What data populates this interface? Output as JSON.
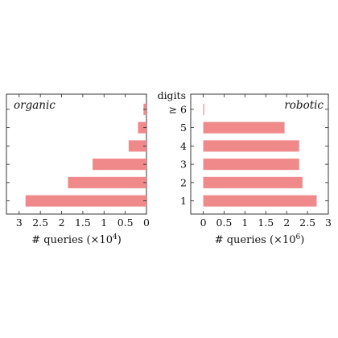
{
  "chart_data": [
    {
      "type": "bar",
      "orientation": "horizontal",
      "panel_label": "organic",
      "categories": [
        "1",
        "2",
        "3",
        "4",
        "5",
        "≥ 6"
      ],
      "values": [
        2.85,
        1.85,
        1.27,
        0.42,
        0.2,
        0.07
      ],
      "x_reversed": true,
      "xlim": [
        0,
        3.3
      ],
      "xticks": [
        "3",
        "2.5",
        "2",
        "1.5",
        "1",
        "0.5",
        "0"
      ],
      "xtick_values": [
        3,
        2.5,
        2,
        1.5,
        1,
        0.5,
        0
      ],
      "xlabel": "# queries (×10",
      "xlabel_exp": "4",
      "xlabel_close": ")",
      "ylabel": "",
      "show_category_labels": false,
      "bar_color": "#f08a8a",
      "grid": false
    },
    {
      "type": "bar",
      "orientation": "horizontal",
      "panel_label": "robotic",
      "categories": [
        "1",
        "2",
        "3",
        "4",
        "5",
        "≥ 6"
      ],
      "values": [
        2.72,
        2.38,
        2.3,
        2.3,
        1.95,
        0.02
      ],
      "x_reversed": false,
      "xlim": [
        -0.3,
        3.0
      ],
      "xticks": [
        "0",
        "0.5",
        "1",
        "1.5",
        "2",
        "2.5",
        "3"
      ],
      "xtick_values": [
        0,
        0.5,
        1,
        1.5,
        2,
        2.5,
        3
      ],
      "xlabel": "# queries (×10",
      "xlabel_exp": "6",
      "xlabel_close": ")",
      "ylabel": "digits",
      "show_category_labels": true,
      "bar_color": "#f08a8a",
      "grid": false
    }
  ]
}
